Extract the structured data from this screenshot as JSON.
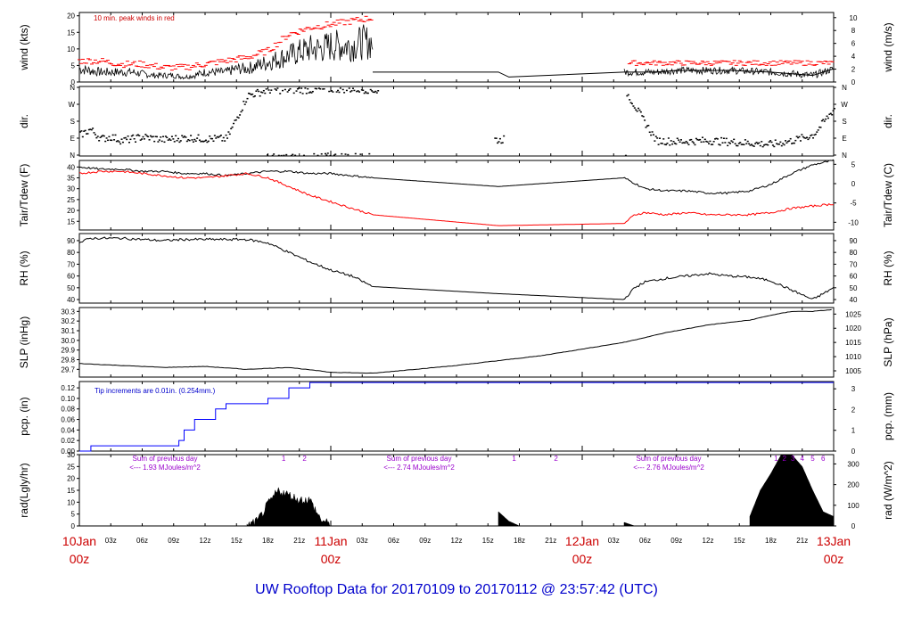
{
  "title": "UW Rooftop Data for 20170109  to  20170112 @ 23:57:42  (UTC)",
  "x_axis": {
    "hour_ticks": [
      "03z",
      "06z",
      "09z",
      "12z",
      "15z",
      "18z",
      "21z"
    ],
    "day_labels": [
      {
        "date": "10Jan",
        "hour": "00z"
      },
      {
        "date": "11Jan",
        "hour": "00z"
      },
      {
        "date": "12Jan",
        "hour": "00z"
      },
      {
        "date": "13Jan",
        "hour": "00z"
      }
    ]
  },
  "panels": {
    "wind": {
      "left_label": "wind (kts)",
      "right_label": "wind (m/s)",
      "note": "10 min. peak winds in red",
      "left_ticks": [
        "0",
        "5",
        "10",
        "15",
        "20"
      ],
      "right_ticks": [
        "0",
        "2",
        "4",
        "6",
        "8",
        "10"
      ]
    },
    "dir": {
      "left_label": "dir.",
      "right_label": "dir.",
      "ticks": [
        "N",
        "E",
        "S",
        "W",
        "N"
      ]
    },
    "temp": {
      "left_label": "Tair/Tdew (F)",
      "right_label": "Tair/Tdew (C)",
      "left_ticks": [
        "15",
        "20",
        "25",
        "30",
        "35",
        "40"
      ],
      "right_ticks": [
        "-10",
        "-5",
        "0",
        "5"
      ]
    },
    "rh": {
      "left_label": "RH (%)",
      "right_label": "RH (%)",
      "left_ticks": [
        "40",
        "50",
        "60",
        "70",
        "80",
        "90"
      ],
      "right_ticks": [
        "40",
        "50",
        "60",
        "70",
        "80",
        "90"
      ]
    },
    "slp": {
      "left_label": "SLP (inHg)",
      "right_label": "SLP (hPa)",
      "left_ticks": [
        "29.7",
        "29.8",
        "29.9",
        "30.0",
        "30.1",
        "30.2",
        "30.3"
      ],
      "right_ticks": [
        "1005",
        "1010",
        "1015",
        "1020",
        "1025"
      ]
    },
    "pcp": {
      "left_label": "pcp. (in)",
      "right_label": "pcp. (mm)",
      "note": "Tip increments are 0.01in. (0.254mm.)",
      "left_ticks": [
        "0.00",
        "0.02",
        "0.04",
        "0.06",
        "0.08",
        "0.10",
        "0.12"
      ],
      "right_ticks": [
        "0",
        "1",
        "2",
        "3"
      ]
    },
    "rad": {
      "left_label": "rad(Lgly/hr)",
      "right_label": "rad (W/m^2)",
      "left_ticks": [
        "0",
        "5",
        "10",
        "15",
        "20",
        "25",
        "30"
      ],
      "right_ticks": [
        "0",
        "100",
        "200",
        "300"
      ],
      "sums": [
        {
          "line1": "Sum of previous day",
          "line2": "<--- 1.93 MJoules/m^2"
        },
        {
          "line1": "Sum of previous day",
          "line2": "<--- 2.74 MJoules/m^2"
        },
        {
          "line1": "Sum of previous day",
          "line2": "<--- 2.76 MJoules/m^2"
        }
      ],
      "hour_marks": [
        {
          "day": 0,
          "labels": [
            "1",
            "2"
          ]
        },
        {
          "day": 1,
          "labels": [
            "1",
            "2"
          ]
        },
        {
          "day": 2,
          "labels": [
            "1",
            "2",
            "3",
            "4",
            "5",
            "6"
          ]
        }
      ]
    }
  },
  "chart_data": {
    "type": "line",
    "x_unit": "hours since 2017-01-10 00z",
    "xlim": [
      0,
      72
    ],
    "colors": {
      "air_temp": "#000000",
      "dewpoint": "#ff0000",
      "wind": "#000000",
      "gust": "#ff0000",
      "precip": "#0000ff",
      "radiation": "#000000"
    },
    "series": [
      {
        "name": "wind",
        "unit": "kts",
        "ylim": [
          0,
          21
        ],
        "x": [
          0,
          1,
          2,
          3,
          4,
          5,
          6,
          7,
          8,
          9,
          10,
          11,
          12,
          13,
          14,
          15,
          16,
          17,
          18,
          19,
          20,
          21,
          22,
          23,
          24,
          25,
          26,
          27,
          28
        ],
        "y": [
          4,
          3.5,
          3,
          3,
          3,
          3,
          2.5,
          2,
          2,
          2,
          1.5,
          2,
          3,
          3,
          3,
          4,
          4,
          5,
          6,
          7,
          8,
          9,
          10,
          10,
          11,
          11,
          11,
          12,
          12
        ]
      },
      {
        "name": "wind_lowrate",
        "unit": "kts",
        "x": [
          28,
          40,
          41,
          52,
          55,
          57,
          62,
          66,
          70,
          72
        ],
        "y": [
          3,
          3,
          1.5,
          3,
          3,
          3.5,
          3.5,
          3,
          2,
          4
        ]
      },
      {
        "name": "gust",
        "unit": "kts",
        "x": [
          0,
          2,
          4,
          6,
          8,
          10,
          12,
          14,
          16,
          18,
          20,
          22,
          24,
          26,
          28
        ],
        "y": [
          6,
          6,
          5,
          5,
          4,
          4,
          5,
          6,
          7,
          9,
          14,
          16,
          17,
          18,
          19
        ]
      },
      {
        "name": "dir_points",
        "unit": "deg",
        "x": [
          0,
          1,
          2,
          3,
          4,
          5,
          6,
          8,
          10,
          12,
          14,
          16,
          18,
          20,
          22,
          24,
          26,
          28,
          40,
          52,
          55,
          57,
          60,
          63,
          66,
          68,
          70,
          72
        ],
        "y": [
          110,
          140,
          90,
          100,
          80,
          90,
          100,
          85,
          95,
          90,
          90,
          320,
          350,
          350,
          350,
          355,
          355,
          350,
          80,
          350,
          80,
          75,
          80,
          70,
          60,
          80,
          110,
          250
        ]
      },
      {
        "name": "Tair",
        "unit": "F",
        "x": [
          0,
          2,
          4,
          6,
          8,
          10,
          12,
          14,
          16,
          18,
          20,
          22,
          24,
          26,
          28,
          40,
          52,
          54,
          56,
          58,
          60,
          62,
          64,
          66,
          68,
          70,
          72
        ],
        "y": [
          40,
          39,
          39,
          38,
          38,
          37,
          37,
          36,
          37,
          38,
          38,
          37,
          37,
          36,
          35,
          31,
          35,
          30,
          29,
          29,
          28,
          28,
          29,
          32,
          37,
          41,
          43
        ]
      },
      {
        "name": "Tdew",
        "unit": "F",
        "x": [
          0,
          2,
          4,
          6,
          8,
          10,
          12,
          14,
          16,
          18,
          20,
          22,
          24,
          26,
          28,
          40,
          52,
          53,
          54,
          56,
          58,
          60,
          62,
          64,
          66,
          68,
          70,
          72
        ],
        "y": [
          37,
          38,
          38,
          37,
          36,
          35,
          35,
          36,
          37,
          35,
          31,
          27,
          24,
          21,
          18,
          13,
          14,
          18,
          19,
          18,
          19,
          18,
          18,
          18,
          19,
          21,
          22,
          23
        ]
      },
      {
        "name": "RH",
        "unit": "%",
        "x": [
          0,
          1,
          2,
          4,
          6,
          8,
          10,
          12,
          14,
          16,
          18,
          20,
          22,
          24,
          26,
          28,
          40,
          52,
          53,
          54,
          56,
          58,
          60,
          62,
          64,
          66,
          68,
          70,
          72
        ],
        "y": [
          88,
          92,
          92,
          92,
          91,
          90,
          91,
          91,
          91,
          91,
          88,
          80,
          72,
          65,
          60,
          51,
          45,
          40,
          50,
          55,
          58,
          60,
          62,
          60,
          59,
          56,
          48,
          40,
          50
        ]
      },
      {
        "name": "SLP",
        "unit": "inHg",
        "x": [
          0,
          4,
          8,
          12,
          16,
          20,
          24,
          28,
          32,
          36,
          40,
          44,
          48,
          52,
          56,
          60,
          64,
          66,
          68,
          70,
          72
        ],
        "y": [
          29.76,
          29.74,
          29.72,
          29.73,
          29.7,
          29.72,
          29.67,
          29.66,
          29.7,
          29.74,
          29.79,
          29.84,
          29.91,
          29.98,
          30.08,
          30.16,
          30.21,
          30.26,
          30.3,
          30.3,
          30.32
        ]
      },
      {
        "name": "precip",
        "unit": "in",
        "x": [
          0,
          1,
          1.1,
          6,
          9,
          9.5,
          10,
          11,
          13,
          14,
          16,
          18,
          20,
          22,
          24,
          26,
          28,
          72
        ],
        "y": [
          0,
          0,
          0.01,
          0.01,
          0.01,
          0.02,
          0.04,
          0.06,
          0.08,
          0.09,
          0.09,
          0.1,
          0.12,
          0.13,
          0.13,
          0.13,
          0.13,
          0.13
        ]
      },
      {
        "name": "radiation",
        "unit": "Lgly/hr",
        "x": [
          16,
          17,
          18,
          19,
          20,
          21,
          22,
          23,
          24,
          40,
          41,
          42,
          52,
          53,
          54,
          64,
          65,
          66,
          67,
          68,
          69,
          70,
          71,
          72
        ],
        "y": [
          0,
          2,
          9,
          15,
          13,
          11,
          11,
          3,
          0,
          6,
          2,
          0,
          1.5,
          0,
          0,
          4,
          15,
          22,
          30,
          30,
          25,
          15,
          6,
          4
        ]
      }
    ]
  }
}
